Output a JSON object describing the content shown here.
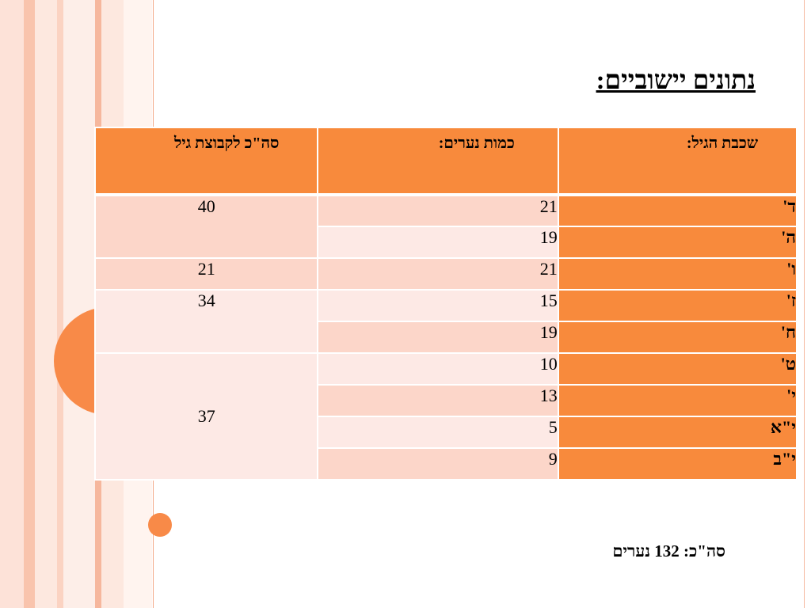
{
  "title": "נתונים יישוביים:",
  "table": {
    "headers": {
      "age": "שכבת הגיל:",
      "count": "כמות נערים:",
      "total": "סה\"כ לקבוצת גיל"
    },
    "rows": [
      {
        "age": "ד'",
        "count": "21"
      },
      {
        "age": "ה'",
        "count": "19"
      },
      {
        "age": "ו'",
        "count": "21"
      },
      {
        "age": "ז'",
        "count": "15"
      },
      {
        "age": "ח'",
        "count": "19"
      },
      {
        "age": "ט'",
        "count": "10"
      },
      {
        "age": "י'",
        "count": "13"
      },
      {
        "age": "י\"א",
        "count": "5"
      },
      {
        "age": "י\"ב",
        "count": "9"
      }
    ],
    "group_totals": [
      "40",
      "21",
      "34",
      "37"
    ]
  },
  "footer": "סה\"כ: 132 נערים",
  "colors": {
    "accent": "#f88a3c",
    "row_dark": "#fcd6c9",
    "row_light": "#fde9e5"
  }
}
